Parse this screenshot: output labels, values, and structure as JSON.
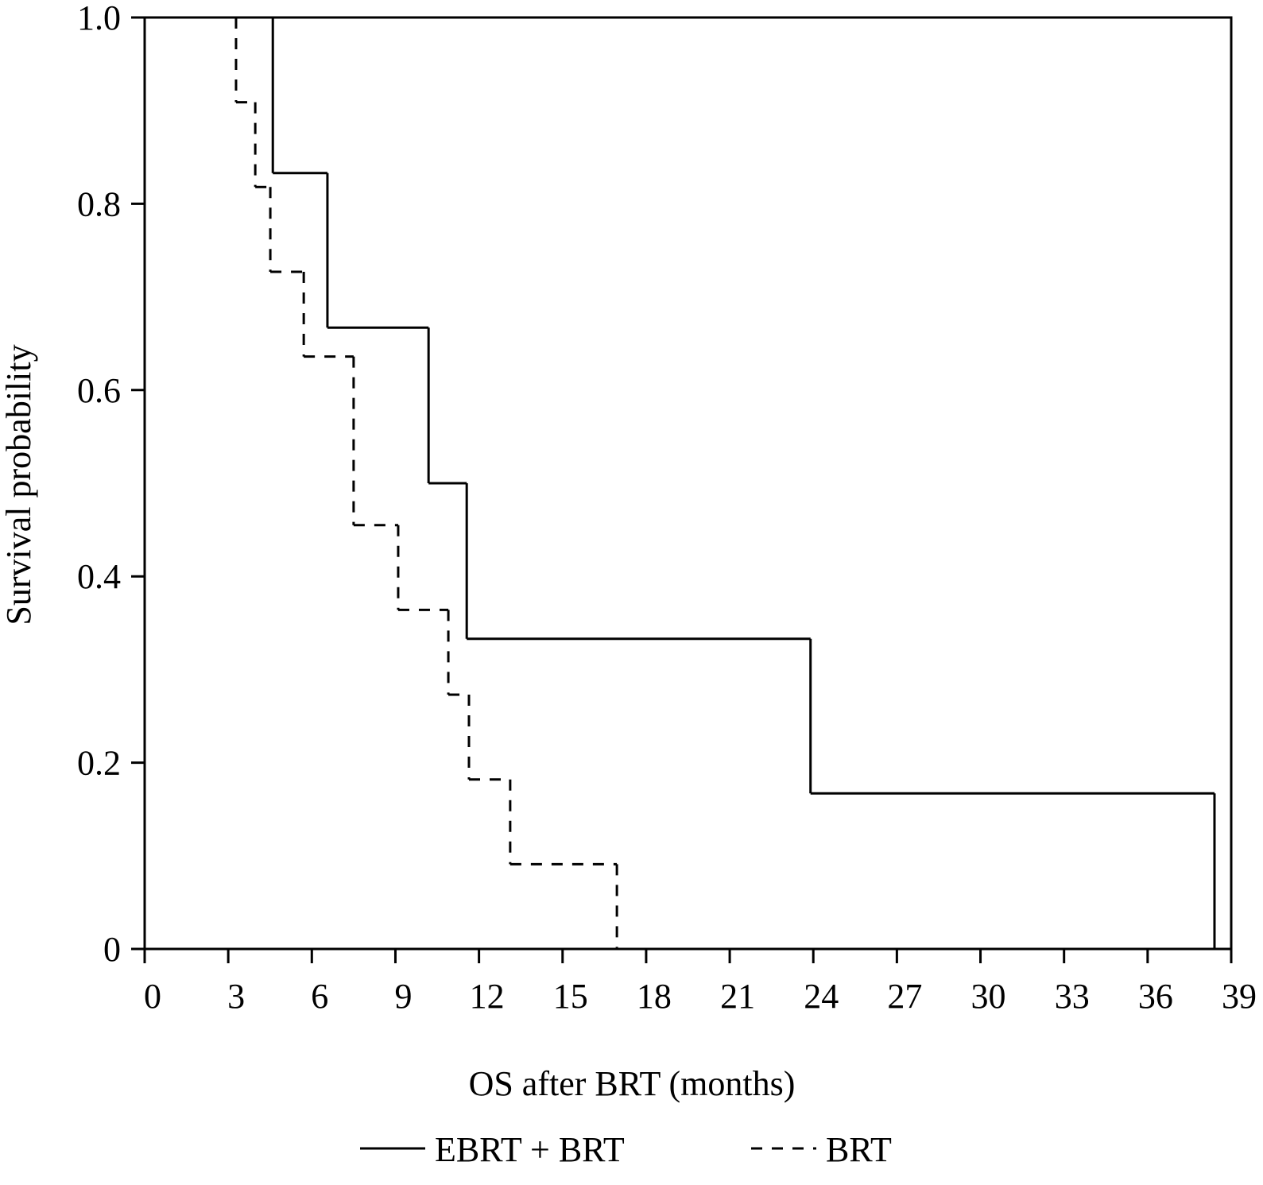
{
  "chart_data": {
    "type": "step",
    "x_label": "OS after BRT (months)",
    "y_label": "Survival probability",
    "xlim": [
      0,
      39
    ],
    "ylim": [
      0,
      1
    ],
    "xticks": [
      0,
      3,
      6,
      9,
      12,
      15,
      18,
      21,
      24,
      27,
      30,
      33,
      36,
      39
    ],
    "yticks": [
      0,
      0.2,
      0.4,
      0.6,
      0.8,
      {
        "value": 1,
        "label": "1.0"
      }
    ],
    "legend": "bottom",
    "series": [
      {
        "name": "EBRT + BRT",
        "color": "#000000",
        "line_style": "solid",
        "x": [
          0,
          4.6,
          6.56,
          10.19,
          11.56,
          23.9,
          38.4
        ],
        "values": [
          1,
          0.833,
          0.667,
          0.5,
          0.333,
          0.167,
          0
        ]
      },
      {
        "name": "BRT",
        "color": "#000000",
        "line_style": "dashed",
        "x": [
          0,
          3.28,
          3.97,
          4.51,
          5.71,
          7.5,
          9.1,
          10.9,
          11.64,
          13.12,
          16.95
        ],
        "values": [
          1,
          0.909,
          0.818,
          0.727,
          0.636,
          0.455,
          0.364,
          0.273,
          0.182,
          0.091,
          0
        ]
      }
    ]
  }
}
